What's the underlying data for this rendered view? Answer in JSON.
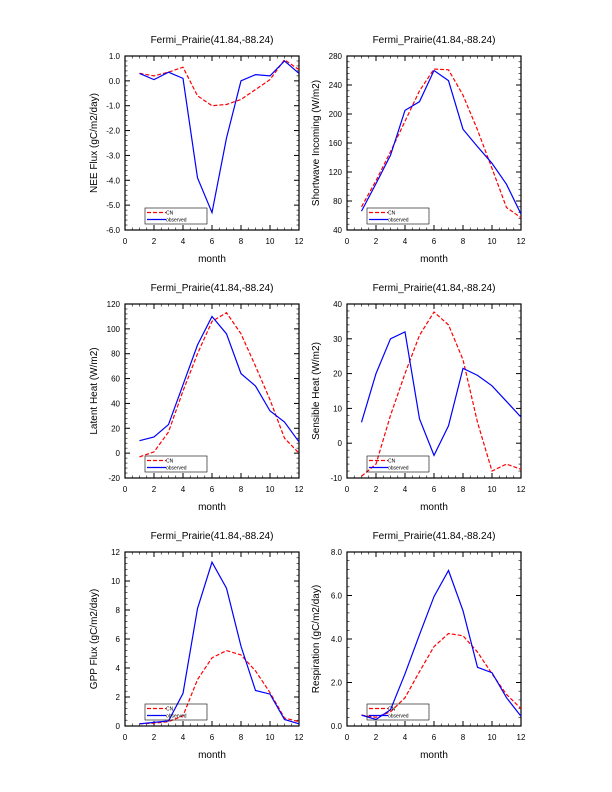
{
  "chart_data": [
    {
      "type": "line",
      "title": "Fermi_Prairie(41.84,-88.24)",
      "xlabel": "month",
      "ylabel": "NEE Flux (gC/m2/day)",
      "xlim": [
        0,
        12
      ],
      "ylim": [
        -6,
        1
      ],
      "yticks": [
        -6,
        -5,
        -4,
        -3,
        -2,
        -1,
        0,
        1
      ],
      "ytick_labels": [
        "-6.0",
        "-5.0",
        "-4.0",
        "-3.0",
        "-2.0",
        "-1.0",
        "0.0",
        "1.0"
      ],
      "xticks": [
        0,
        2,
        4,
        6,
        8,
        10,
        12
      ],
      "xtick_labels": [
        "0",
        "2",
        "4",
        "6",
        "8",
        "10",
        "12"
      ],
      "legend_position": "bottom-left",
      "x": [
        1,
        2,
        3,
        4,
        5,
        6,
        7,
        8,
        9,
        10,
        11,
        12
      ],
      "series": [
        {
          "name": "CN",
          "color": "#ff0000",
          "dash": true,
          "values": [
            0.3,
            0.2,
            0.35,
            0.55,
            -0.6,
            -1.0,
            -0.95,
            -0.75,
            -0.35,
            0.05,
            0.85,
            0.45
          ]
        },
        {
          "name": "observed",
          "color": "#0000ff",
          "dash": false,
          "values": [
            0.3,
            0.05,
            0.35,
            0.1,
            -3.9,
            -5.3,
            -2.3,
            0.0,
            0.25,
            0.2,
            0.8,
            0.3
          ]
        }
      ]
    },
    {
      "type": "line",
      "title": "Fermi_Prairie(41.84,-88.24)",
      "xlabel": "month",
      "ylabel": "Shortwave Incoming (W/m2)",
      "xlim": [
        0,
        12
      ],
      "ylim": [
        40,
        280
      ],
      "yticks": [
        40,
        80,
        120,
        160,
        200,
        240,
        280
      ],
      "ytick_labels": [
        "40",
        "80",
        "120",
        "160",
        "200",
        "240",
        "280"
      ],
      "xticks": [
        0,
        2,
        4,
        6,
        8,
        10,
        12
      ],
      "xtick_labels": [
        "0",
        "2",
        "4",
        "6",
        "8",
        "10",
        "12"
      ],
      "legend_position": "bottom-left",
      "x": [
        1,
        2,
        3,
        4,
        5,
        6,
        7,
        8,
        9,
        10,
        11,
        12
      ],
      "series": [
        {
          "name": "CN",
          "color": "#ff0000",
          "dash": true,
          "values": [
            72,
            108,
            148,
            190,
            232,
            262,
            261,
            226,
            178,
            125,
            71,
            57
          ]
        },
        {
          "name": "observed",
          "color": "#0000ff",
          "dash": false,
          "values": [
            66,
            104,
            143,
            205,
            217,
            260,
            246,
            179,
            155,
            132,
            103,
            62
          ]
        }
      ]
    },
    {
      "type": "line",
      "title": "Fermi_Prairie(41.84,-88.24)",
      "xlabel": "month",
      "ylabel": "Latent Heat (W/m2)",
      "xlim": [
        0,
        12
      ],
      "ylim": [
        -20,
        120
      ],
      "yticks": [
        -20,
        0,
        20,
        40,
        60,
        80,
        100,
        120
      ],
      "ytick_labels": [
        "-20",
        "0",
        "20",
        "40",
        "60",
        "80",
        "100",
        "120"
      ],
      "xticks": [
        0,
        2,
        4,
        6,
        8,
        10,
        12
      ],
      "xtick_labels": [
        "0",
        "2",
        "4",
        "6",
        "8",
        "10",
        "12"
      ],
      "legend_position": "bottom-left",
      "x": [
        1,
        2,
        3,
        4,
        5,
        6,
        7,
        8,
        9,
        10,
        11,
        12
      ],
      "series": [
        {
          "name": "CN",
          "color": "#ff0000",
          "dash": true,
          "values": [
            -3,
            1,
            17,
            50,
            80,
            106,
            113,
            96,
            70,
            43,
            12,
            0
          ]
        },
        {
          "name": "observed",
          "color": "#0000ff",
          "dash": false,
          "values": [
            10,
            13,
            23,
            55,
            87,
            110,
            96,
            64,
            54,
            34,
            25,
            9
          ]
        }
      ]
    },
    {
      "type": "line",
      "title": "Fermi_Prairie(41.84,-88.24)",
      "xlabel": "month",
      "ylabel": "Sensible Heat (W/m2)",
      "xlim": [
        0,
        12
      ],
      "ylim": [
        -10,
        40
      ],
      "yticks": [
        -10,
        0,
        10,
        20,
        30,
        40
      ],
      "ytick_labels": [
        "-10",
        "0",
        "10",
        "20",
        "30",
        "40"
      ],
      "xticks": [
        0,
        2,
        4,
        6,
        8,
        10,
        12
      ],
      "xtick_labels": [
        "0",
        "2",
        "4",
        "6",
        "8",
        "10",
        "12"
      ],
      "legend_position": "bottom-left",
      "x": [
        1,
        2,
        3,
        4,
        5,
        6,
        7,
        8,
        9,
        10,
        11,
        12
      ],
      "series": [
        {
          "name": "CN",
          "color": "#ff0000",
          "dash": true,
          "values": [
            -9.5,
            -6,
            8,
            20,
            31,
            37.7,
            34,
            24,
            6,
            -8,
            -6,
            -7.5
          ]
        },
        {
          "name": "observed",
          "color": "#0000ff",
          "dash": false,
          "values": [
            6,
            20,
            30,
            32,
            7,
            -3.5,
            5,
            21.5,
            19.5,
            16.5,
            12,
            7.5
          ]
        }
      ]
    },
    {
      "type": "line",
      "title": "Fermi_Prairie(41.84,-88.24)",
      "xlabel": "month",
      "ylabel": "GPP Flux (gC/m2/day)",
      "xlim": [
        0,
        12
      ],
      "ylim": [
        0,
        12
      ],
      "yticks": [
        0,
        2,
        4,
        6,
        8,
        10,
        12
      ],
      "ytick_labels": [
        "0",
        "2",
        "4",
        "6",
        "8",
        "10",
        "12"
      ],
      "xticks": [
        0,
        2,
        4,
        6,
        8,
        10,
        12
      ],
      "xtick_labels": [
        "0",
        "2",
        "4",
        "6",
        "8",
        "10",
        "12"
      ],
      "legend_position": "bottom-left",
      "x": [
        1,
        2,
        3,
        4,
        5,
        6,
        7,
        8,
        9,
        10,
        11,
        12
      ],
      "series": [
        {
          "name": "CN",
          "color": "#ff0000",
          "dash": true,
          "values": [
            0.15,
            0.2,
            0.3,
            0.7,
            3.2,
            4.7,
            5.2,
            4.9,
            3.8,
            2.3,
            0.55,
            0.3
          ]
        },
        {
          "name": "observed",
          "color": "#0000ff",
          "dash": false,
          "values": [
            0.15,
            0.25,
            0.35,
            2.25,
            8.1,
            11.3,
            9.5,
            5.5,
            2.45,
            2.2,
            0.45,
            0.15
          ]
        }
      ]
    },
    {
      "type": "line",
      "title": "Fermi_Prairie(41.84,-88.24)",
      "xlabel": "month",
      "ylabel": "Respiration (gC/m2/day)",
      "xlim": [
        0,
        12
      ],
      "ylim": [
        0,
        8
      ],
      "yticks": [
        0,
        2,
        4,
        6,
        8
      ],
      "ytick_labels": [
        "0.0",
        "2.0",
        "4.0",
        "6.0",
        "8.0"
      ],
      "xticks": [
        0,
        2,
        4,
        6,
        8,
        10,
        12
      ],
      "xtick_labels": [
        "0",
        "2",
        "4",
        "6",
        "8",
        "10",
        "12"
      ],
      "legend_position": "bottom-left",
      "x": [
        1,
        2,
        3,
        4,
        5,
        6,
        7,
        8,
        9,
        10,
        11,
        12
      ],
      "series": [
        {
          "name": "CN",
          "color": "#ff0000",
          "dash": true,
          "values": [
            0.5,
            0.4,
            0.65,
            1.3,
            2.5,
            3.65,
            4.25,
            4.15,
            3.4,
            2.4,
            1.45,
            0.8
          ]
        },
        {
          "name": "observed",
          "color": "#0000ff",
          "dash": false,
          "values": [
            0.5,
            0.3,
            0.75,
            2.4,
            4.2,
            5.95,
            7.15,
            5.3,
            2.7,
            2.45,
            1.3,
            0.45
          ]
        }
      ]
    }
  ]
}
